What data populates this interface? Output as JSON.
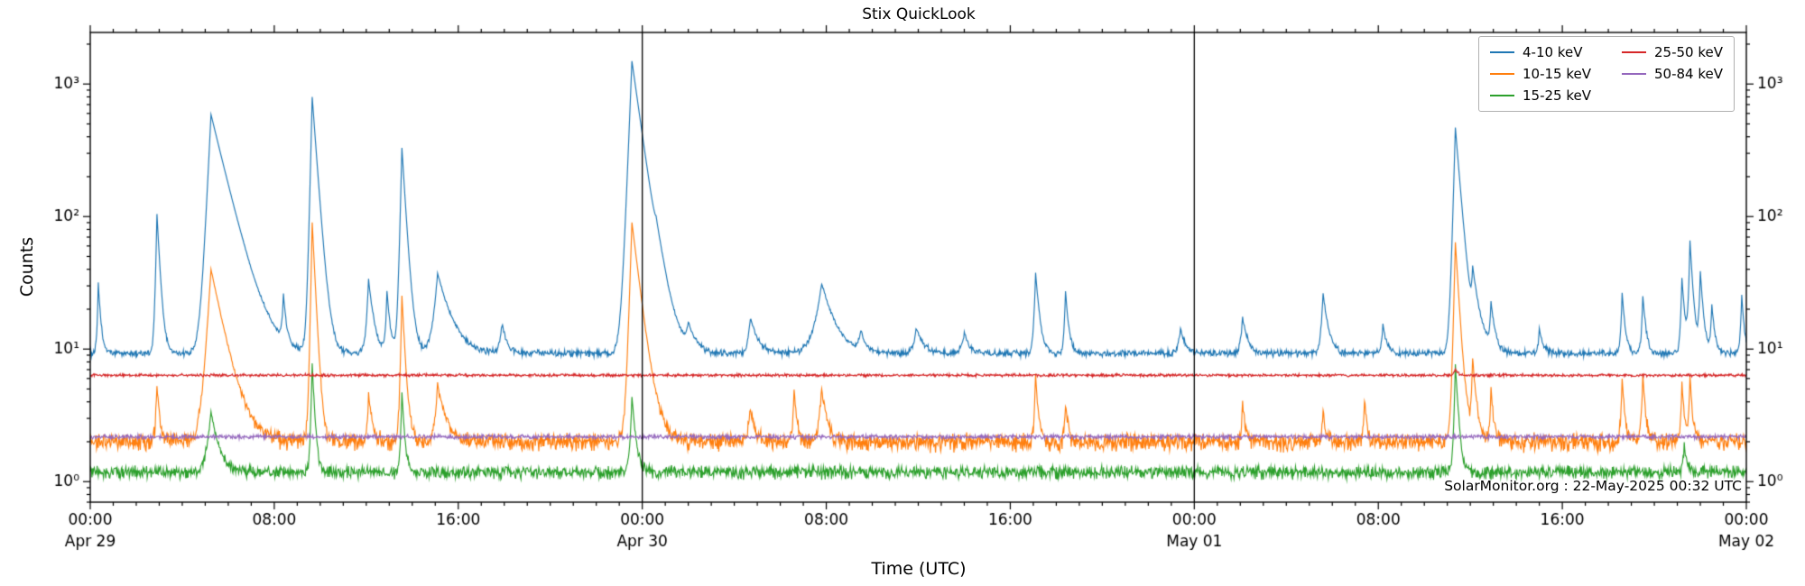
{
  "chart_data": {
    "type": "line",
    "title": "Stix QuickLook",
    "xlabel": "Time (UTC)",
    "ylabel": "Counts",
    "annotation": "SolarMonitor.org : 22-May-2025 00:32 UTC",
    "x_total_hours": 72,
    "x_major_ticks": [
      {
        "t": 0,
        "label": "00:00"
      },
      {
        "t": 8,
        "label": "08:00"
      },
      {
        "t": 16,
        "label": "16:00"
      },
      {
        "t": 24,
        "label": "00:00"
      },
      {
        "t": 32,
        "label": "08:00"
      },
      {
        "t": 40,
        "label": "16:00"
      },
      {
        "t": 48,
        "label": "00:00"
      },
      {
        "t": 56,
        "label": "08:00"
      },
      {
        "t": 64,
        "label": "16:00"
      },
      {
        "t": 72,
        "label": "00:00"
      }
    ],
    "x_minor_step_hours": 1,
    "x_date_ticks": [
      {
        "t": 0,
        "label": "Apr 29"
      },
      {
        "t": 24,
        "label": "Apr 30"
      },
      {
        "t": 48,
        "label": "May 01"
      },
      {
        "t": 72,
        "label": "May 02"
      }
    ],
    "day_boundaries": [
      24,
      48
    ],
    "y_scale": "log",
    "ylim": [
      0.7,
      2450
    ],
    "y_major_ticks": [
      {
        "v": 1,
        "label": "10⁰"
      },
      {
        "v": 10,
        "label": "10¹"
      },
      {
        "v": 100,
        "label": "10²"
      },
      {
        "v": 1000,
        "label": "10³"
      }
    ],
    "legend_position": "upper right",
    "grid": false,
    "series": [
      {
        "name": "4-10 keV",
        "color": "#1f77b4",
        "baseline": 9.3,
        "noise": 0.07,
        "spikes": [
          [
            0.35,
            22,
            0.04,
            0.1
          ],
          [
            2.9,
            95,
            0.05,
            0.12
          ],
          [
            5.25,
            580,
            0.12,
            0.6
          ],
          [
            8.4,
            14,
            0.05,
            0.1
          ],
          [
            9.65,
            790,
            0.06,
            0.18
          ],
          [
            12.1,
            24,
            0.08,
            0.2
          ],
          [
            12.9,
            18,
            0.05,
            0.12
          ],
          [
            13.55,
            320,
            0.06,
            0.15
          ],
          [
            15.1,
            28,
            0.15,
            0.5
          ],
          [
            17.9,
            6,
            0.1,
            0.2
          ],
          [
            23.55,
            1480,
            0.1,
            0.35
          ],
          [
            24.6,
            18,
            0.1,
            0.4
          ],
          [
            26.0,
            5,
            0.1,
            0.3
          ],
          [
            28.7,
            8,
            0.1,
            0.3
          ],
          [
            31.8,
            22,
            0.25,
            0.5
          ],
          [
            33.5,
            4,
            0.1,
            0.2
          ],
          [
            35.9,
            5,
            0.1,
            0.3
          ],
          [
            38.0,
            4,
            0.1,
            0.2
          ],
          [
            41.1,
            28,
            0.06,
            0.15
          ],
          [
            42.4,
            18,
            0.05,
            0.12
          ],
          [
            47.4,
            5,
            0.1,
            0.2
          ],
          [
            50.1,
            8,
            0.08,
            0.2
          ],
          [
            53.6,
            17,
            0.08,
            0.2
          ],
          [
            56.2,
            6,
            0.06,
            0.15
          ],
          [
            59.35,
            460,
            0.07,
            0.2
          ],
          [
            60.1,
            22,
            0.05,
            0.3
          ],
          [
            60.9,
            12,
            0.05,
            0.15
          ],
          [
            63.0,
            5,
            0.05,
            0.15
          ],
          [
            66.6,
            17,
            0.05,
            0.12
          ],
          [
            67.5,
            16,
            0.05,
            0.12
          ],
          [
            69.2,
            25,
            0.05,
            0.12
          ],
          [
            69.55,
            55,
            0.05,
            0.12
          ],
          [
            70.0,
            28,
            0.05,
            0.12
          ],
          [
            70.5,
            12,
            0.05,
            0.12
          ],
          [
            71.8,
            16,
            0.05,
            0.1
          ]
        ]
      },
      {
        "name": "10-15 keV",
        "color": "#ff7f0e",
        "baseline": 2.0,
        "noise": 0.18,
        "spikes": [
          [
            2.9,
            3.5,
            0.05,
            0.1
          ],
          [
            5.25,
            38,
            0.15,
            0.5
          ],
          [
            9.65,
            88,
            0.05,
            0.12
          ],
          [
            12.1,
            2.5,
            0.05,
            0.15
          ],
          [
            13.55,
            23,
            0.05,
            0.12
          ],
          [
            15.1,
            3.5,
            0.1,
            0.3
          ],
          [
            23.55,
            88,
            0.08,
            0.3
          ],
          [
            28.7,
            1.5,
            0.1,
            0.2
          ],
          [
            30.6,
            3.0,
            0.05,
            0.1
          ],
          [
            31.8,
            3.0,
            0.1,
            0.2
          ],
          [
            41.1,
            4.5,
            0.05,
            0.1
          ],
          [
            42.4,
            2.0,
            0.05,
            0.1
          ],
          [
            50.1,
            2.0,
            0.05,
            0.1
          ],
          [
            53.6,
            1.5,
            0.05,
            0.1
          ],
          [
            55.4,
            2.0,
            0.05,
            0.1
          ],
          [
            59.35,
            62,
            0.06,
            0.15
          ],
          [
            60.1,
            6.0,
            0.05,
            0.15
          ],
          [
            60.9,
            3.0,
            0.05,
            0.1
          ],
          [
            66.6,
            4.0,
            0.05,
            0.1
          ],
          [
            67.5,
            4.5,
            0.05,
            0.1
          ],
          [
            69.2,
            3.5,
            0.05,
            0.1
          ],
          [
            69.55,
            4.0,
            0.05,
            0.1
          ]
        ]
      },
      {
        "name": "15-25 keV",
        "color": "#2ca02c",
        "baseline": 1.18,
        "noise": 0.13,
        "spikes": [
          [
            5.25,
            2.2,
            0.15,
            0.3
          ],
          [
            9.65,
            6.5,
            0.05,
            0.1
          ],
          [
            13.55,
            3.5,
            0.05,
            0.1
          ],
          [
            23.55,
            3.2,
            0.06,
            0.15
          ],
          [
            59.35,
            6.5,
            0.05,
            0.12
          ],
          [
            69.3,
            0.8,
            0.05,
            0.1
          ]
        ]
      },
      {
        "name": "25-50 keV",
        "color": "#d62728",
        "baseline": 6.35,
        "noise": 0.03,
        "spikes": [
          [
            59.35,
            0.8,
            0.05,
            0.1
          ]
        ]
      },
      {
        "name": "50-84 keV",
        "color": "#9467bd",
        "baseline": 2.18,
        "noise": 0.045,
        "spikes": []
      }
    ]
  }
}
